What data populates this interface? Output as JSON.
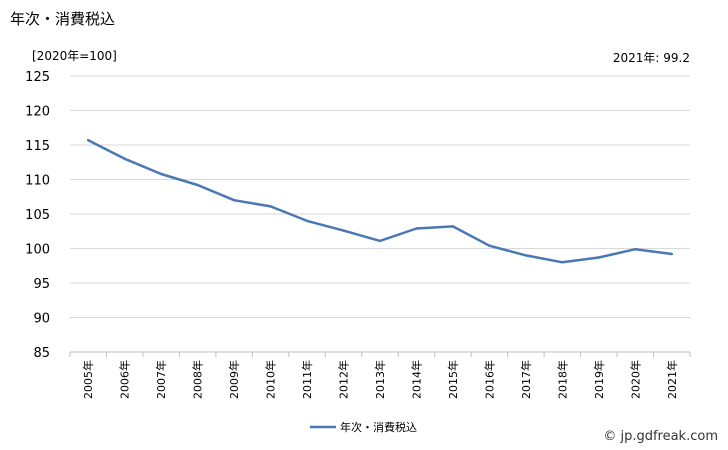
{
  "title": "年次・消費税込",
  "unit_label": "[2020年=100]",
  "note": "2021年: 99.2",
  "credit": "© jp.gdfreak.com",
  "chart_data": {
    "type": "line",
    "title": "年次・消費税込",
    "xlabel": "",
    "ylabel": "",
    "categories": [
      "2005年",
      "2006年",
      "2007年",
      "2008年",
      "2009年",
      "2010年",
      "2011年",
      "2012年",
      "2013年",
      "2014年",
      "2015年",
      "2016年",
      "2017年",
      "2018年",
      "2019年",
      "2020年",
      "2021年"
    ],
    "series": [
      {
        "name": "年次・消費税込",
        "color": "#4a78b5",
        "values": [
          115.7,
          113.0,
          110.8,
          109.2,
          107.0,
          106.1,
          104.0,
          102.6,
          101.1,
          102.9,
          103.2,
          100.4,
          99.0,
          98.0,
          98.7,
          99.9,
          99.2
        ]
      }
    ],
    "ylim": [
      85,
      125
    ],
    "yticks": [
      85,
      90,
      95,
      100,
      105,
      110,
      115,
      120,
      125
    ],
    "grid": true,
    "legend_position": "bottom"
  }
}
